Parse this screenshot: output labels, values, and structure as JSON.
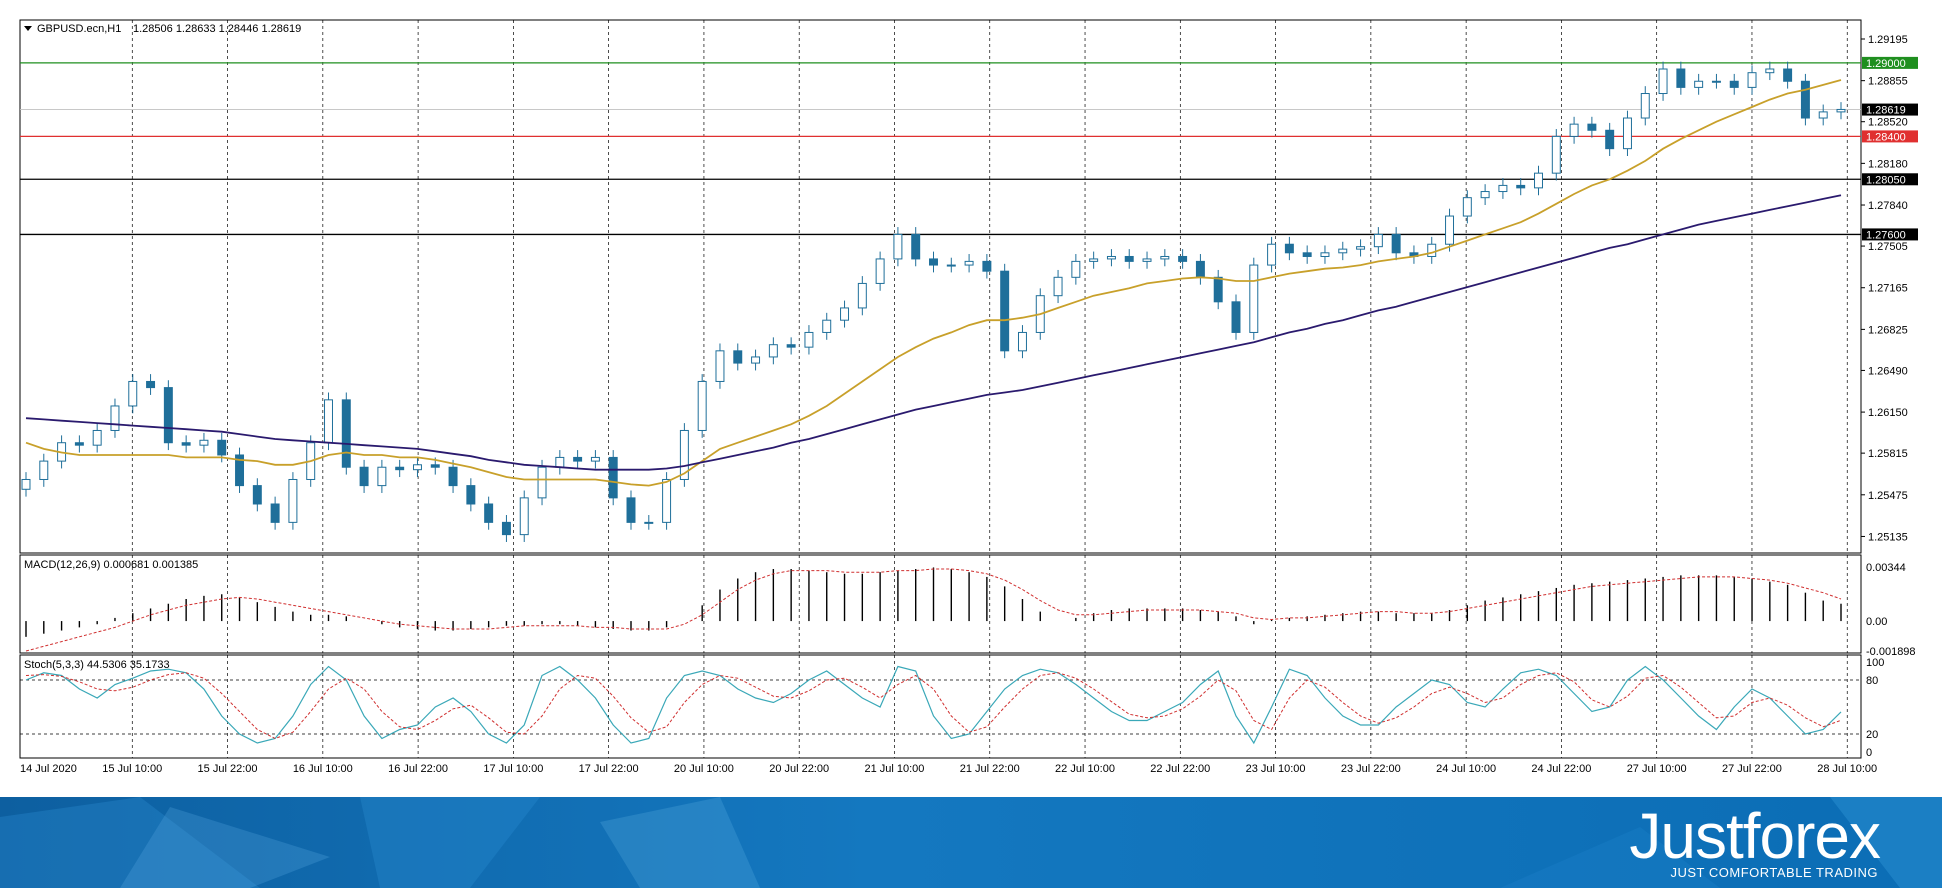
{
  "header": {
    "symbol": "GBPUSD.ecn,H1",
    "quote": "1.28506 1.28633 1.28446 1.28619"
  },
  "chart_data": [
    {
      "type": "candlestick",
      "title": "GBPUSD.ecn,H1",
      "ylim": [
        1.25,
        1.2935
      ],
      "y_ticks": [
        "1.29195",
        "1.28855",
        "1.28520",
        "1.28180",
        "1.27840",
        "1.27505",
        "1.27165",
        "1.26825",
        "1.26490",
        "1.26150",
        "1.25815",
        "1.25475",
        "1.25135"
      ],
      "x_ticks": [
        "14 Jul 2020",
        "15 Jul 10:00",
        "15 Jul 22:00",
        "16 Jul 10:00",
        "16 Jul 22:00",
        "17 Jul 10:00",
        "17 Jul 22:00",
        "20 Jul 10:00",
        "20 Jul 22:00",
        "21 Jul 10:00",
        "21 Jul 22:00",
        "22 Jul 10:00",
        "22 Jul 22:00",
        "23 Jul 10:00",
        "23 Jul 22:00",
        "24 Jul 10:00",
        "24 Jul 22:00",
        "27 Jul 10:00",
        "27 Jul 22:00",
        "28 Jul 10:00"
      ],
      "horizontal_levels": [
        {
          "label": "1.29000",
          "value": 1.29,
          "color": "#1f8f1f"
        },
        {
          "label": "1.28400",
          "value": 1.284,
          "color": "#e03030"
        },
        {
          "label": "1.28050",
          "value": 1.2805,
          "color": "#000000"
        },
        {
          "label": "1.27600",
          "value": 1.276,
          "color": "#000000"
        }
      ],
      "current_price": {
        "label": "1.28619",
        "value": 1.28619
      },
      "close_series": [
        1.256,
        1.2575,
        1.259,
        1.2588,
        1.26,
        1.262,
        1.264,
        1.2635,
        1.259,
        1.2588,
        1.2592,
        1.258,
        1.2555,
        1.254,
        1.2525,
        1.256,
        1.259,
        1.2625,
        1.257,
        1.2555,
        1.257,
        1.2568,
        1.2572,
        1.257,
        1.2555,
        1.254,
        1.2525,
        1.2515,
        1.2545,
        1.257,
        1.2578,
        1.2575,
        1.2578,
        1.2545,
        1.2525,
        1.2525,
        1.256,
        1.26,
        1.264,
        1.2665,
        1.2655,
        1.266,
        1.267,
        1.2668,
        1.268,
        1.269,
        1.27,
        1.272,
        1.274,
        1.276,
        1.274,
        1.2735,
        1.2735,
        1.2738,
        1.273,
        1.2665,
        1.268,
        1.271,
        1.2725,
        1.2738,
        1.274,
        1.2742,
        1.2738,
        1.274,
        1.2742,
        1.2738,
        1.2725,
        1.2705,
        1.268,
        1.2735,
        1.2752,
        1.2745,
        1.2742,
        1.2745,
        1.2748,
        1.275,
        1.276,
        1.2745,
        1.2742,
        1.2752,
        1.2775,
        1.279,
        1.2795,
        1.28,
        1.2798,
        1.281,
        1.284,
        1.285,
        1.2845,
        1.283,
        1.2855,
        1.2875,
        1.2895,
        1.288,
        1.2885,
        1.2885,
        1.288,
        1.2892,
        1.2895,
        1.2885,
        1.2855,
        1.286,
        1.2862
      ],
      "close_range": [
        1.2514,
        1.2896
      ],
      "series": [
        {
          "name": "MA fast",
          "color": "#c8a02a",
          "values": [
            1.259,
            1.2585,
            1.2582,
            1.258,
            1.258,
            1.258,
            1.258,
            1.258,
            1.258,
            1.2578,
            1.2578,
            1.2578,
            1.2576,
            1.2575,
            1.2572,
            1.2572,
            1.2575,
            1.258,
            1.2582,
            1.258,
            1.258,
            1.2578,
            1.2578,
            1.2576,
            1.2573,
            1.257,
            1.2566,
            1.2562,
            1.256,
            1.256,
            1.256,
            1.256,
            1.256,
            1.2558,
            1.2556,
            1.2555,
            1.2558,
            1.2565,
            1.2575,
            1.2585,
            1.259,
            1.2595,
            1.26,
            1.2605,
            1.2612,
            1.262,
            1.263,
            1.264,
            1.265,
            1.266,
            1.2668,
            1.2675,
            1.268,
            1.2686,
            1.269,
            1.269,
            1.2692,
            1.2695,
            1.27,
            1.2705,
            1.271,
            1.2713,
            1.2716,
            1.272,
            1.2722,
            1.2724,
            1.2725,
            1.2724,
            1.2722,
            1.2722,
            1.2725,
            1.2728,
            1.273,
            1.2732,
            1.2733,
            1.2735,
            1.2738,
            1.274,
            1.2742,
            1.2745,
            1.275,
            1.2755,
            1.276,
            1.2765,
            1.277,
            1.2777,
            1.2785,
            1.2793,
            1.28,
            1.2805,
            1.2812,
            1.282,
            1.283,
            1.2838,
            1.2845,
            1.2852,
            1.2858,
            1.2864,
            1.287,
            1.2875,
            1.2878,
            1.2882,
            1.2886
          ]
        },
        {
          "name": "MA slow",
          "color": "#2a1a6e",
          "values": [
            1.261,
            1.2609,
            1.2608,
            1.2607,
            1.2606,
            1.2605,
            1.2604,
            1.2603,
            1.2602,
            1.2601,
            1.26,
            1.2599,
            1.2597,
            1.2595,
            1.2593,
            1.2592,
            1.2591,
            1.259,
            1.2589,
            1.2588,
            1.2587,
            1.2586,
            1.2585,
            1.2583,
            1.2581,
            1.2579,
            1.2576,
            1.2574,
            1.2572,
            1.2571,
            1.257,
            1.2569,
            1.2568,
            1.2568,
            1.2568,
            1.2568,
            1.2569,
            1.2571,
            1.2574,
            1.2577,
            1.258,
            1.2583,
            1.2586,
            1.259,
            1.2593,
            1.2597,
            1.2601,
            1.2605,
            1.2609,
            1.2613,
            1.2617,
            1.262,
            1.2623,
            1.2626,
            1.2629,
            1.2631,
            1.2633,
            1.2636,
            1.2639,
            1.2642,
            1.2645,
            1.2648,
            1.2651,
            1.2654,
            1.2657,
            1.266,
            1.2663,
            1.2666,
            1.2669,
            1.2672,
            1.2676,
            1.268,
            1.2683,
            1.2687,
            1.269,
            1.2694,
            1.2698,
            1.2701,
            1.2705,
            1.2709,
            1.2713,
            1.2717,
            1.2721,
            1.2725,
            1.2729,
            1.2733,
            1.2737,
            1.2741,
            1.2745,
            1.2749,
            1.2752,
            1.2756,
            1.276,
            1.2764,
            1.2768,
            1.2771,
            1.2774,
            1.2777,
            1.278,
            1.2783,
            1.2786,
            1.2789,
            1.2792
          ]
        }
      ]
    },
    {
      "type": "bar",
      "title": "MACD(12,26,9) 0.000681 0.001385",
      "y_ticks": [
        "0.00344",
        "0.00",
        "-0.001898"
      ],
      "ylim": [
        -0.001898,
        0.004
      ],
      "histogram": [
        -0.001,
        -0.0008,
        -0.0006,
        -0.0004,
        -0.0002,
        0.0002,
        0.0005,
        0.0008,
        0.0011,
        0.0014,
        0.0016,
        0.0017,
        0.0015,
        0.0012,
        0.0009,
        0.0006,
        0.0004,
        0.0004,
        0.0003,
        0.0,
        -0.0002,
        -0.0004,
        -0.0005,
        -0.0006,
        -0.0006,
        -0.0005,
        -0.0004,
        -0.0003,
        -0.0003,
        -0.0002,
        -0.0002,
        -0.0003,
        -0.0004,
        -0.0005,
        -0.0006,
        -0.0006,
        -0.0004,
        0.0,
        0.001,
        0.002,
        0.0027,
        0.0031,
        0.0033,
        0.0033,
        0.0032,
        0.0031,
        0.003,
        0.003,
        0.0031,
        0.0032,
        0.0033,
        0.0034,
        0.0033,
        0.0031,
        0.0028,
        0.0022,
        0.0014,
        0.0006,
        0.0,
        0.0002,
        0.0005,
        0.0007,
        0.0008,
        0.0008,
        0.0008,
        0.0008,
        0.0007,
        0.0006,
        0.0003,
        -0.0002,
        0.0001,
        0.0002,
        0.0003,
        0.0004,
        0.0005,
        0.0006,
        0.0006,
        0.0005,
        0.0005,
        0.0005,
        0.0007,
        0.001,
        0.0013,
        0.0015,
        0.0017,
        0.0019,
        0.0021,
        0.0023,
        0.0024,
        0.0025,
        0.0026,
        0.0027,
        0.0028,
        0.0029,
        0.0029,
        0.0029,
        0.0028,
        0.0027,
        0.0025,
        0.0023,
        0.0018,
        0.0013,
        0.0011
      ],
      "signal": [
        -0.0019,
        -0.0016,
        -0.0013,
        -0.001,
        -0.0007,
        -0.0004,
        0.0,
        0.0004,
        0.0007,
        0.001,
        0.0012,
        0.0014,
        0.0015,
        0.0014,
        0.0012,
        0.001,
        0.0008,
        0.0006,
        0.0004,
        0.0002,
        0.0,
        -0.0002,
        -0.0003,
        -0.0004,
        -0.0005,
        -0.0005,
        -0.0005,
        -0.0004,
        -0.0003,
        -0.0003,
        -0.0003,
        -0.0003,
        -0.0004,
        -0.0004,
        -0.0005,
        -0.0005,
        -0.0005,
        -0.0002,
        0.0004,
        0.0012,
        0.002,
        0.0026,
        0.003,
        0.0032,
        0.0032,
        0.0032,
        0.0031,
        0.0031,
        0.0031,
        0.0032,
        0.0032,
        0.0033,
        0.0033,
        0.0032,
        0.003,
        0.0026,
        0.002,
        0.0013,
        0.0007,
        0.0004,
        0.0004,
        0.0005,
        0.0006,
        0.0007,
        0.0007,
        0.0007,
        0.0007,
        0.0006,
        0.0005,
        0.0002,
        0.0001,
        0.0002,
        0.0002,
        0.0003,
        0.0004,
        0.0005,
        0.0006,
        0.0006,
        0.0005,
        0.0005,
        0.0006,
        0.0008,
        0.001,
        0.0012,
        0.0014,
        0.0016,
        0.0018,
        0.002,
        0.0022,
        0.0023,
        0.0024,
        0.0025,
        0.0026,
        0.0027,
        0.0028,
        0.0028,
        0.0028,
        0.0027,
        0.0026,
        0.0024,
        0.0021,
        0.0018,
        0.0014
      ]
    },
    {
      "type": "line",
      "title": "Stoch(5,3,3) 44.5306 35.1733",
      "y_ticks": [
        "100",
        "80",
        "20",
        "0"
      ],
      "ylim": [
        0,
        100
      ],
      "main": [
        80,
        88,
        85,
        70,
        60,
        75,
        82,
        90,
        92,
        88,
        70,
        40,
        20,
        10,
        15,
        40,
        75,
        95,
        80,
        40,
        15,
        25,
        30,
        50,
        60,
        45,
        20,
        10,
        30,
        85,
        95,
        80,
        60,
        30,
        10,
        15,
        60,
        85,
        90,
        85,
        70,
        60,
        55,
        65,
        80,
        90,
        75,
        60,
        50,
        95,
        90,
        40,
        15,
        20,
        45,
        70,
        85,
        92,
        88,
        75,
        60,
        45,
        35,
        35,
        45,
        55,
        75,
        90,
        40,
        10,
        50,
        92,
        85,
        60,
        40,
        30,
        30,
        50,
        65,
        80,
        75,
        55,
        50,
        70,
        88,
        92,
        85,
        65,
        45,
        50,
        80,
        95,
        80,
        60,
        40,
        25,
        50,
        70,
        60,
        40,
        20,
        25,
        44.53
      ],
      "signal": [
        85,
        86,
        84,
        78,
        70,
        68,
        72,
        80,
        86,
        88,
        82,
        65,
        45,
        25,
        15,
        22,
        45,
        70,
        82,
        70,
        45,
        28,
        25,
        35,
        48,
        52,
        38,
        22,
        20,
        40,
        70,
        85,
        82,
        62,
        38,
        22,
        28,
        55,
        75,
        85,
        82,
        72,
        62,
        60,
        68,
        80,
        82,
        72,
        60,
        75,
        85,
        70,
        40,
        22,
        28,
        50,
        70,
        85,
        88,
        82,
        70,
        56,
        42,
        38,
        40,
        48,
        62,
        80,
        68,
        35,
        25,
        60,
        80,
        72,
        55,
        40,
        32,
        38,
        50,
        65,
        72,
        65,
        55,
        60,
        75,
        85,
        88,
        78,
        58,
        50,
        62,
        82,
        85,
        72,
        55,
        38,
        40,
        55,
        60,
        52,
        38,
        28,
        35.17
      ]
    }
  ],
  "brand": {
    "logo": "Justforex",
    "tagline": "JUST COMFORTABLE TRADING"
  }
}
